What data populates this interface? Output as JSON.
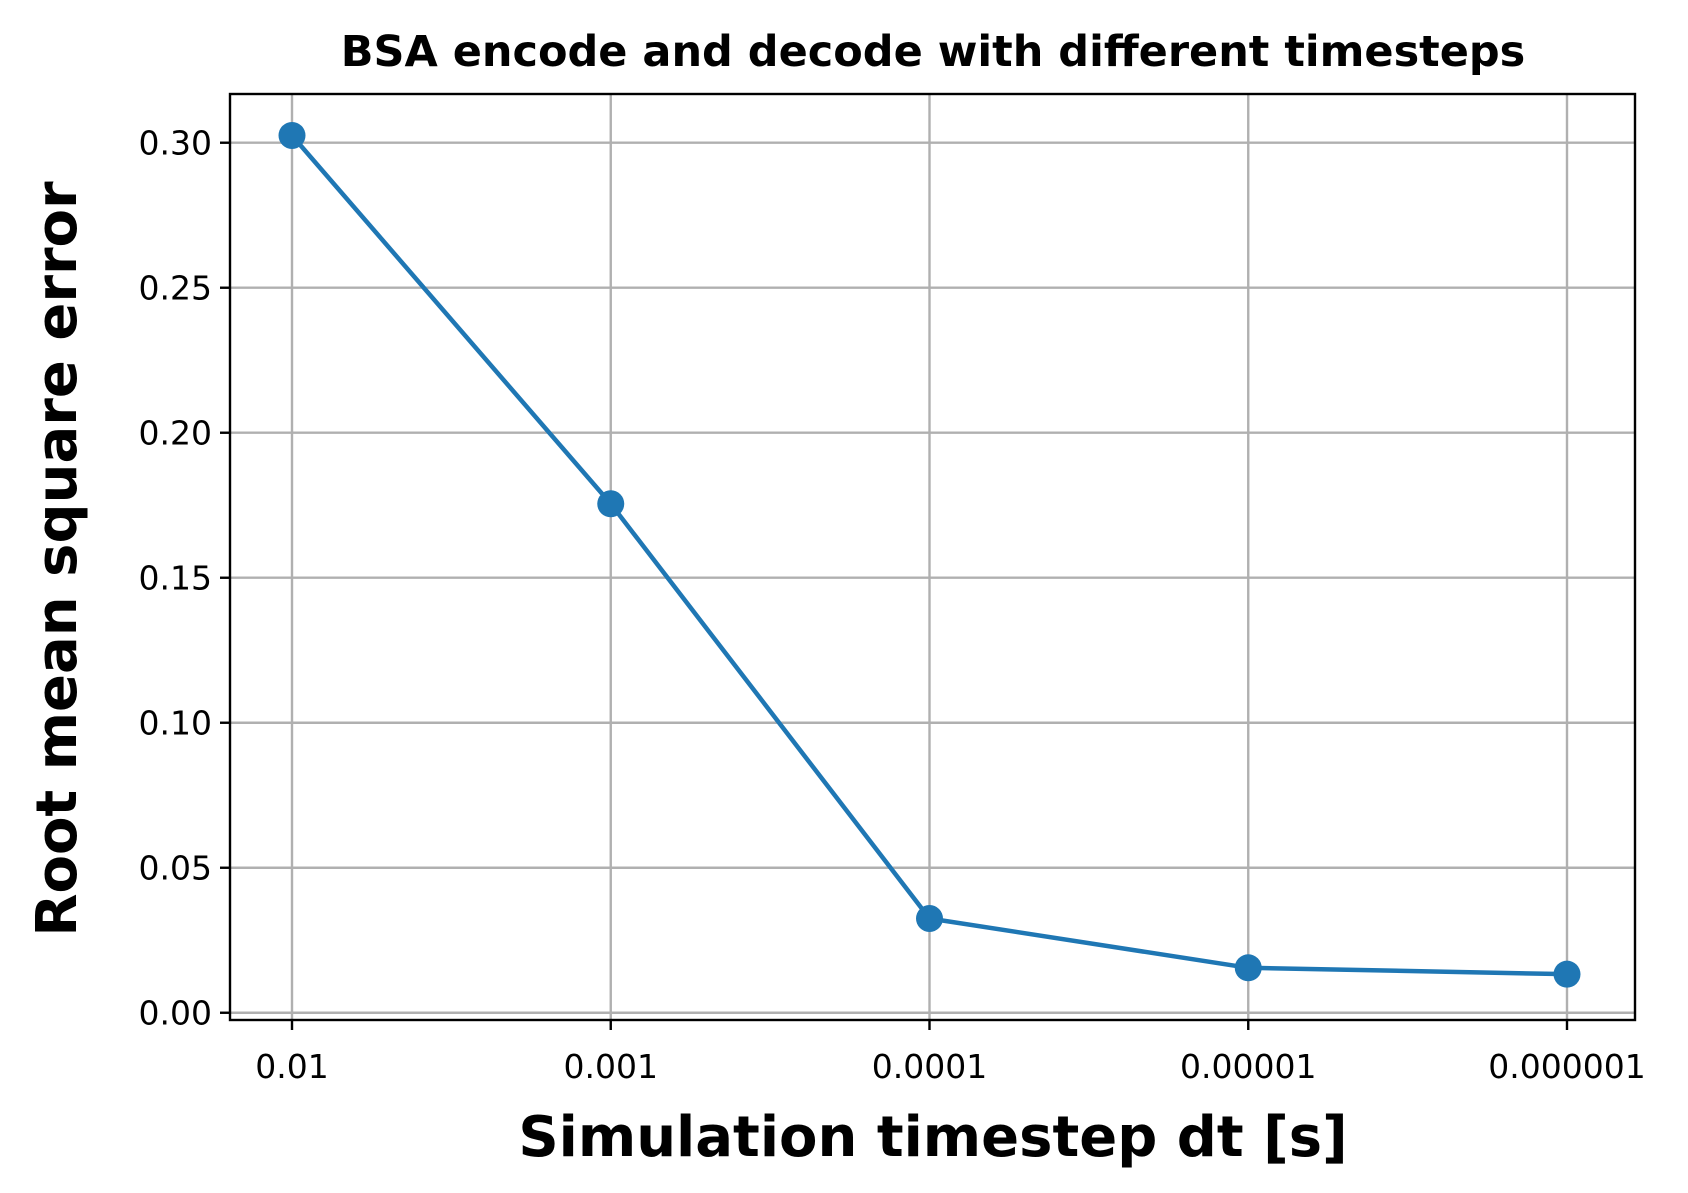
{
  "chart_data": {
    "type": "line",
    "title": "BSA encode and decode with different timesteps",
    "xlabel": "Simulation timestep dt [s]",
    "ylabel": "Root mean square error",
    "categories": [
      "0.01",
      "0.001",
      "0.0001",
      "0.00001",
      "0.000001"
    ],
    "yticks": [
      "0.00",
      "0.05",
      "0.10",
      "0.15",
      "0.20",
      "0.25",
      "0.30"
    ],
    "ylim": [
      -0.0025,
      0.3168
    ],
    "grid": true,
    "series": [
      {
        "values": [
          0.3025,
          0.1755,
          0.0325,
          0.0155,
          0.0133
        ],
        "color": "#1f77b4",
        "marker": "circle"
      }
    ]
  }
}
